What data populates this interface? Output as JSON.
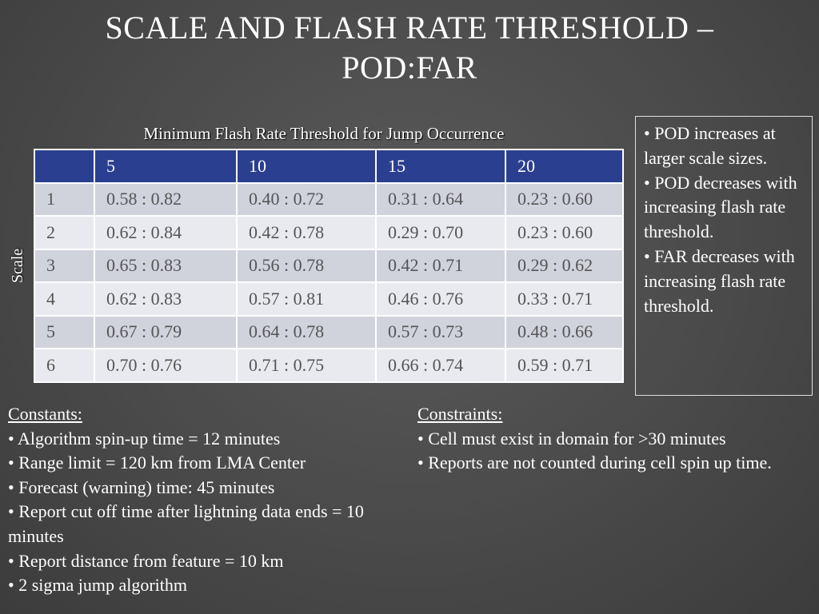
{
  "title_line1": "SCALE AND FLASH RATE THRESHOLD –",
  "title_line2": "POD:FAR",
  "table": {
    "caption": "Minimum Flash Rate Threshold for Jump Occurrence",
    "row_axis_label": "Scale",
    "header_corner": "",
    "columns": [
      "5",
      "10",
      "15",
      "20"
    ],
    "rows": [
      {
        "scale": "1",
        "cells": [
          "0.58 : 0.82",
          "0.40 : 0.72",
          "0.31 : 0.64",
          "0.23 : 0.60"
        ]
      },
      {
        "scale": "2",
        "cells": [
          "0.62 : 0.84",
          "0.42 : 0.78",
          "0.29 : 0.70",
          "0.23 : 0.60"
        ]
      },
      {
        "scale": "3",
        "cells": [
          "0.65 : 0.83",
          "0.56 : 0.78",
          "0.42 : 0.71",
          "0.29 : 0.62"
        ]
      },
      {
        "scale": "4",
        "cells": [
          "0.62 : 0.83",
          "0.57 : 0.81",
          "0.46 : 0.76",
          "0.33 : 0.71"
        ]
      },
      {
        "scale": "5",
        "cells": [
          "0.67 : 0.79",
          "0.64 : 0.78",
          "0.57 : 0.73",
          "0.48 : 0.66"
        ]
      },
      {
        "scale": "6",
        "cells": [
          "0.70 : 0.76",
          "0.71 : 0.75",
          "0.66 : 0.74",
          "0.59 : 0.71"
        ]
      }
    ]
  },
  "notes": [
    "• POD increases at larger scale sizes.",
    "• POD decreases with increasing flash rate threshold.",
    "• FAR decreases with increasing flash rate threshold."
  ],
  "constants": {
    "heading": "Constants:",
    "items": [
      "• Algorithm spin-up time = 12 minutes",
      "• Range limit = 120 km from LMA Center",
      "• Forecast (warning) time: 45 minutes",
      "• Report cut off time after lightning data ends = 10 minutes",
      "• Report distance from feature = 10 km",
      "• 2 sigma jump algorithm"
    ]
  },
  "constraints": {
    "heading": "Constraints:",
    "items": [
      "•  Cell must exist in domain for >30 minutes",
      "• Reports are not counted during cell spin up time."
    ]
  },
  "colors": {
    "background": "#4a4a4a",
    "table_header": "#2a3f8f",
    "row_odd": "#d0d2dc",
    "row_even": "#e9eaf0",
    "cell_text": "#555555"
  }
}
